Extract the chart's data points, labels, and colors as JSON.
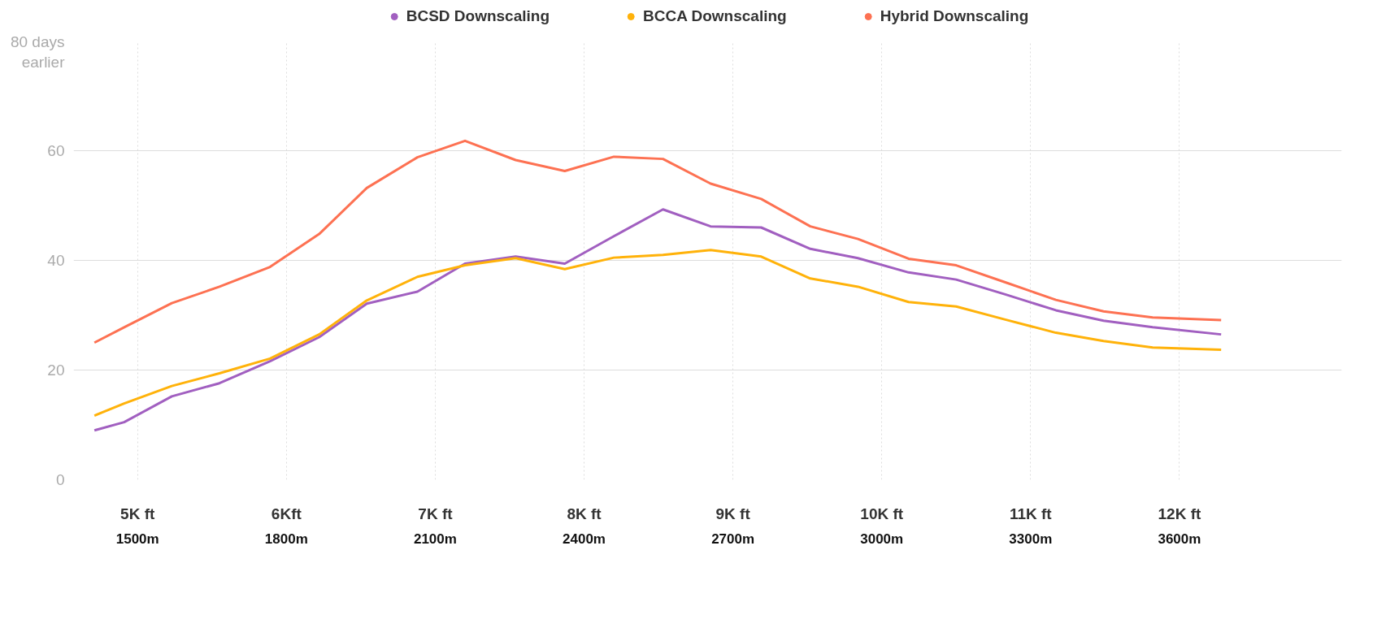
{
  "chart_data": {
    "type": "line",
    "x": [
      1413,
      1473,
      1569,
      1665,
      1767,
      1866,
      1962,
      2064,
      2160,
      2262,
      2361,
      2460,
      2559,
      2655,
      2757,
      2856,
      2952,
      3054,
      3150,
      3249,
      3351,
      3447,
      3546,
      3684
    ],
    "series": [
      {
        "name": "BCSD Downscaling",
        "color": "#a15fc0",
        "values": [
          9,
          10.5,
          15.2,
          17.6,
          21.6,
          26,
          32.1,
          34.3,
          39.4,
          40.7,
          39.4,
          44.4,
          49.3,
          46.2,
          46,
          42.1,
          40.4,
          37.8,
          36.5,
          33.8,
          30.9,
          29,
          27.8,
          26.5
        ]
      },
      {
        "name": "BCCA Downscaling",
        "color": "#ffb20a",
        "values": [
          11.7,
          13.9,
          17.1,
          19.4,
          22.1,
          26.5,
          32.7,
          37,
          39.1,
          40.4,
          38.4,
          40.5,
          41,
          41.9,
          40.7,
          36.7,
          35.2,
          32.4,
          31.6,
          29.2,
          26.8,
          25.3,
          24.1,
          23.7
        ]
      },
      {
        "name": "Hybrid Downscaling",
        "color": "#fd7152",
        "values": [
          25,
          27.8,
          32.2,
          35.2,
          38.8,
          44.8,
          53.2,
          58.8,
          61.8,
          58.3,
          56.3,
          58.9,
          58.5,
          54,
          51.2,
          46.2,
          43.9,
          40.3,
          39.1,
          36,
          32.8,
          30.7,
          29.6,
          29.1
        ]
      }
    ],
    "xlim": [
      1371,
      3927
    ],
    "ylim": [
      0,
      80
    ],
    "xticks": [
      {
        "value": 1500,
        "label": "1500m"
      },
      {
        "value": 1800,
        "label": "1800m"
      },
      {
        "value": 2100,
        "label": "2100m"
      },
      {
        "value": 2400,
        "label": "2400m"
      },
      {
        "value": 2700,
        "label": "2700m"
      },
      {
        "value": 3000,
        "label": "3000m"
      },
      {
        "value": 3300,
        "label": "3300m"
      },
      {
        "value": 3600,
        "label": "3600m"
      }
    ],
    "x2lim": [
      4.57,
      13.09
    ],
    "x2ticks": [
      {
        "value": 5,
        "label": "5K ft"
      },
      {
        "value": 6,
        "label": "6Kft"
      },
      {
        "value": 7,
        "label": "7K ft"
      },
      {
        "value": 8,
        "label": "8K ft"
      },
      {
        "value": 9,
        "label": "9K ft"
      },
      {
        "value": 10,
        "label": "10K ft"
      },
      {
        "value": 11,
        "label": "11K ft"
      },
      {
        "value": 12,
        "label": "12K ft"
      }
    ],
    "yticks": [
      0,
      20,
      40,
      60,
      {
        "value": 80,
        "label": "80 days\nearlier"
      }
    ],
    "grid": true,
    "legend": "top",
    "line_style": "solid"
  }
}
